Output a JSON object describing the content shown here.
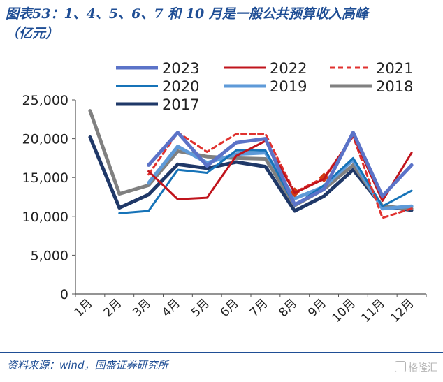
{
  "title": {
    "line1": "图表53：1、4、5、6、7 和 10 月是一般公共预算收入高峰",
    "line2": "（亿元）"
  },
  "source": "资料来源：wind，国盛证券研究所",
  "watermark": "格隆汇",
  "chart_data": {
    "type": "line",
    "categories": [
      "1月",
      "2月",
      "3月",
      "4月",
      "5月",
      "6月",
      "7月",
      "8月",
      "9月",
      "10月",
      "11月",
      "12月"
    ],
    "ylim": [
      0,
      25000
    ],
    "yticks": [
      0,
      5000,
      10000,
      15000,
      20000,
      25000
    ],
    "ytick_labels": [
      "0",
      "5,000",
      "10,000",
      "15,000",
      "20,000",
      "25,000"
    ],
    "grid": false,
    "legend_position": "top",
    "series": [
      {
        "name": "2023",
        "color": "#5b73c8",
        "width": 5,
        "dash": "",
        "values": [
          null,
          null,
          16600,
          20800,
          16500,
          19500,
          20000,
          11500,
          13500,
          20800,
          12600,
          16600
        ]
      },
      {
        "name": "2022",
        "color": "#c0141c",
        "width": 3,
        "dash": "",
        "values": [
          null,
          null,
          15800,
          12200,
          12400,
          17800,
          19700,
          13000,
          14800,
          20400,
          12000,
          18200
        ]
      },
      {
        "name": "2021",
        "color": "#e0322f",
        "width": 3,
        "dash": "7,5",
        "markers": [
          {
            "index": 8,
            "value": 15000,
            "color": "#d13a12"
          },
          {
            "index": 7,
            "value": 13100,
            "color": "#d13a12"
          }
        ],
        "values": [
          null,
          null,
          15400,
          20800,
          18300,
          20600,
          20600,
          13100,
          15000,
          20300,
          9800,
          11000
        ]
      },
      {
        "name": "2020",
        "color": "#1673b8",
        "width": 3,
        "dash": "",
        "values": [
          null,
          10400,
          10700,
          16000,
          15600,
          18500,
          18500,
          11400,
          14000,
          17500,
          11300,
          13300
        ]
      },
      {
        "name": "2019",
        "color": "#5e9ad8",
        "width": 5,
        "dash": "",
        "values": [
          null,
          null,
          14300,
          19000,
          16900,
          18000,
          18200,
          12300,
          13800,
          17300,
          11000,
          11300
        ]
      },
      {
        "name": "2018",
        "color": "#808080",
        "width": 5,
        "dash": "",
        "values": [
          23600,
          12900,
          14000,
          18400,
          17700,
          17500,
          17400,
          11400,
          13500,
          16600,
          11300,
          11000
        ]
      },
      {
        "name": "2017",
        "color": "#1f3868",
        "width": 5,
        "dash": "",
        "values": [
          20200,
          11100,
          12800,
          16700,
          16200,
          17000,
          16400,
          10700,
          12600,
          16000,
          11300,
          10800
        ]
      }
    ]
  }
}
